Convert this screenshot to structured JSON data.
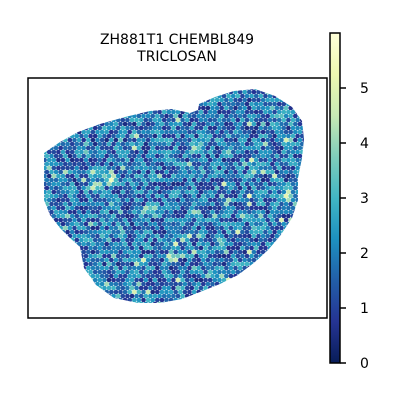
{
  "chart_data": {
    "type": "scatter",
    "subtype": "spatial-hexbin-expression",
    "title": [
      "ZH881T1 CHEMBL849",
      "TRICLOSAN"
    ],
    "axes_visible": false,
    "grid": false,
    "colorbar": {
      "colormap": "YlGnBu_r",
      "range": [
        0,
        6
      ],
      "ticks": [
        0,
        1,
        2,
        3,
        4,
        5
      ],
      "tick_labels": [
        "0",
        "1",
        "2",
        "3",
        "4",
        "5"
      ],
      "placement": "right"
    },
    "value_distribution": {
      "typical_range": [
        0.5,
        3.0
      ],
      "mode": 1.5,
      "max": 5.8
    }
  },
  "colors": {
    "cmap_stops": [
      "#081d58",
      "#253494",
      "#225ea8",
      "#1d91c0",
      "#41b6c4",
      "#7fcdbb",
      "#c7e9b4",
      "#edf8b1",
      "#ffffd9"
    ],
    "frame": "#000000",
    "background": "#ffffff"
  }
}
